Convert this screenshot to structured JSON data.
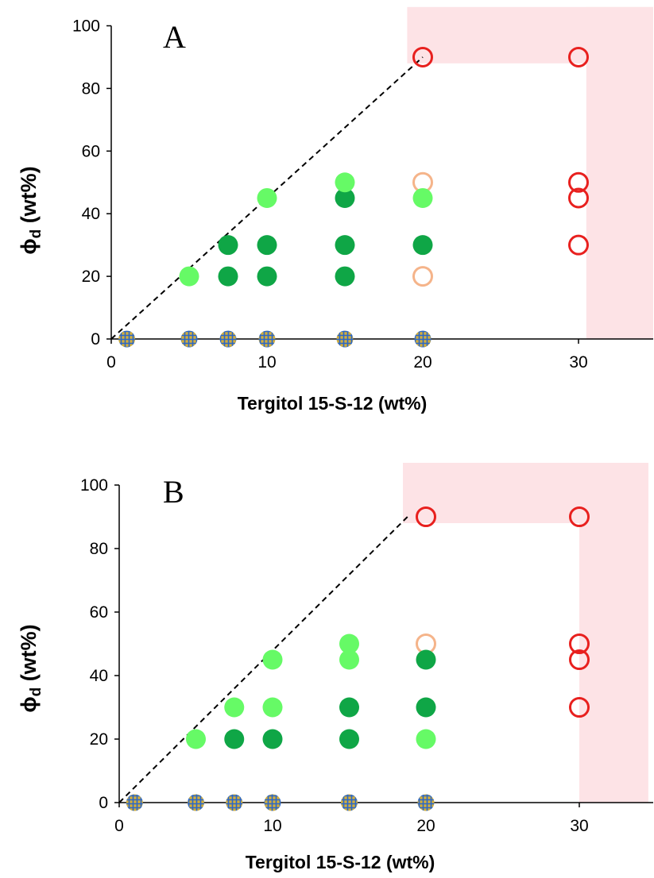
{
  "colors": {
    "red_open": "#e8201e",
    "orange_open": "#f5b48a",
    "dark_green": "#0fa646",
    "light_green": "#66fa66",
    "origin_fill": "#d2ae3c",
    "origin_grid": "#2a67c8",
    "forbidden_zone": "#fde3e6",
    "dashed_line": "#000000"
  },
  "chart_data": [
    {
      "type": "scatter",
      "panel_label": "A",
      "xlabel": "Tergitol 15-S-12 (wt%)",
      "ylabel": "ϕd (wt%)",
      "xlim": [
        0,
        35
      ],
      "ylim": [
        0,
        100
      ],
      "xticks": [
        "0",
        "10",
        "20",
        "30"
      ],
      "yticks": [
        "0",
        "20",
        "40",
        "60",
        "80",
        "100"
      ],
      "dashed_line": [
        [
          0,
          0
        ],
        [
          20,
          90
        ]
      ],
      "shaded_regions": [
        {
          "x": [
            19,
            35
          ],
          "y": [
            88,
            106
          ]
        },
        {
          "x": [
            30.5,
            35
          ],
          "y": [
            0,
            106
          ]
        }
      ],
      "series": [
        {
          "marker": "open_red",
          "points": [
            [
              20,
              90
            ],
            [
              30,
              90
            ],
            [
              30,
              50
            ],
            [
              30,
              45
            ],
            [
              30,
              30
            ]
          ]
        },
        {
          "marker": "open_orange",
          "points": [
            [
              20,
              50
            ],
            [
              20,
              20
            ]
          ]
        },
        {
          "marker": "filled_dark_green",
          "points": [
            [
              7.5,
              30
            ],
            [
              7.5,
              20
            ],
            [
              10,
              30
            ],
            [
              10,
              20
            ],
            [
              15,
              45
            ],
            [
              15,
              30
            ],
            [
              15,
              20
            ],
            [
              20,
              30
            ]
          ]
        },
        {
          "marker": "filled_light_green",
          "points": [
            [
              5,
              20
            ],
            [
              10,
              45
            ],
            [
              15,
              50
            ],
            [
              20,
              45
            ]
          ]
        },
        {
          "marker": "hatched_yellow",
          "points": [
            [
              1,
              0
            ],
            [
              5,
              0
            ],
            [
              7.5,
              0
            ],
            [
              10,
              0
            ],
            [
              15,
              0
            ],
            [
              20,
              0
            ]
          ]
        }
      ]
    },
    {
      "type": "scatter",
      "panel_label": "B",
      "xlabel": "Tergitol 15-S-12 (wt%)",
      "ylabel": "ϕd (wt%)",
      "xlim": [
        0,
        34
      ],
      "ylim": [
        0,
        100
      ],
      "xticks": [
        "0",
        "10",
        "20",
        "30"
      ],
      "yticks": [
        "0",
        "20",
        "40",
        "60",
        "80",
        "100"
      ],
      "dashed_line": [
        [
          0,
          0
        ],
        [
          18.8,
          90
        ]
      ],
      "shaded_regions": [
        {
          "x": [
            18.5,
            34.5
          ],
          "y": [
            88,
            107
          ]
        },
        {
          "x": [
            30,
            34.5
          ],
          "y": [
            0,
            107
          ]
        }
      ],
      "series": [
        {
          "marker": "open_red",
          "points": [
            [
              20,
              90
            ],
            [
              30,
              90
            ],
            [
              30,
              50
            ],
            [
              30,
              45
            ],
            [
              30,
              30
            ]
          ]
        },
        {
          "marker": "open_orange",
          "points": [
            [
              20,
              50
            ]
          ]
        },
        {
          "marker": "filled_dark_green",
          "points": [
            [
              7.5,
              20
            ],
            [
              10,
              20
            ],
            [
              15,
              30
            ],
            [
              15,
              20
            ],
            [
              20,
              45
            ],
            [
              20,
              30
            ]
          ]
        },
        {
          "marker": "filled_light_green",
          "points": [
            [
              5,
              20
            ],
            [
              7.5,
              30
            ],
            [
              10,
              45
            ],
            [
              10,
              30
            ],
            [
              15,
              50
            ],
            [
              15,
              45
            ],
            [
              20,
              20
            ]
          ]
        },
        {
          "marker": "hatched_yellow",
          "points": [
            [
              1,
              0
            ],
            [
              5,
              0
            ],
            [
              7.5,
              0
            ],
            [
              10,
              0
            ],
            [
              15,
              0
            ],
            [
              20,
              0
            ]
          ]
        }
      ]
    }
  ]
}
